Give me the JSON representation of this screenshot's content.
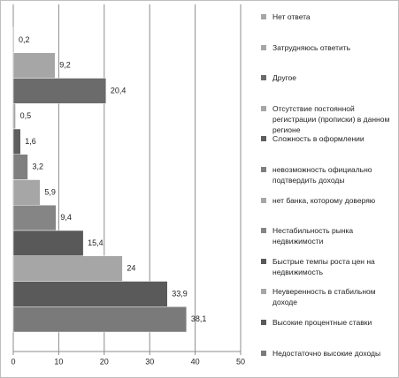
{
  "chart_data": {
    "type": "hbar",
    "categories": [
      "Нет ответа",
      "Затрудняюсь ответить",
      "Другое",
      "Отсутствие постоянной регистрации (прописки) в данном регионе",
      "Сложность в оформлении",
      "невозможность официально подтвердить доходы",
      "нет банка, которому доверяю",
      "Нестабильность рынка недвижимости",
      "Быстрые темпы роста цен на недвижимость",
      "Неуверенность в стабильном доходе",
      "Высокие процентные ставки",
      "Недостаточно высокие доходы"
    ],
    "values": [
      0.2,
      9.2,
      20.4,
      0.5,
      1.6,
      3.2,
      5.9,
      9.4,
      15.4,
      24,
      33.9,
      38.1
    ],
    "value_labels": [
      "0,2",
      "9,2",
      "20,4",
      "0,5",
      "1,6",
      "3,2",
      "5,9",
      "9,4",
      "15,4",
      "24",
      "33,9",
      "38,1"
    ],
    "colors": [
      "#a6a6a6",
      "#a6a6a6",
      "#6b6b6b",
      "#a6a6a6",
      "#5e5e5e",
      "#7f7f7f",
      "#a6a6a6",
      "#858585",
      "#595959",
      "#a6a6a6",
      "#5a5a5a",
      "#7a7a7a"
    ],
    "xlim": [
      0,
      50
    ],
    "xticks": [
      0,
      10,
      20,
      30,
      40,
      50
    ],
    "grid": true
  }
}
